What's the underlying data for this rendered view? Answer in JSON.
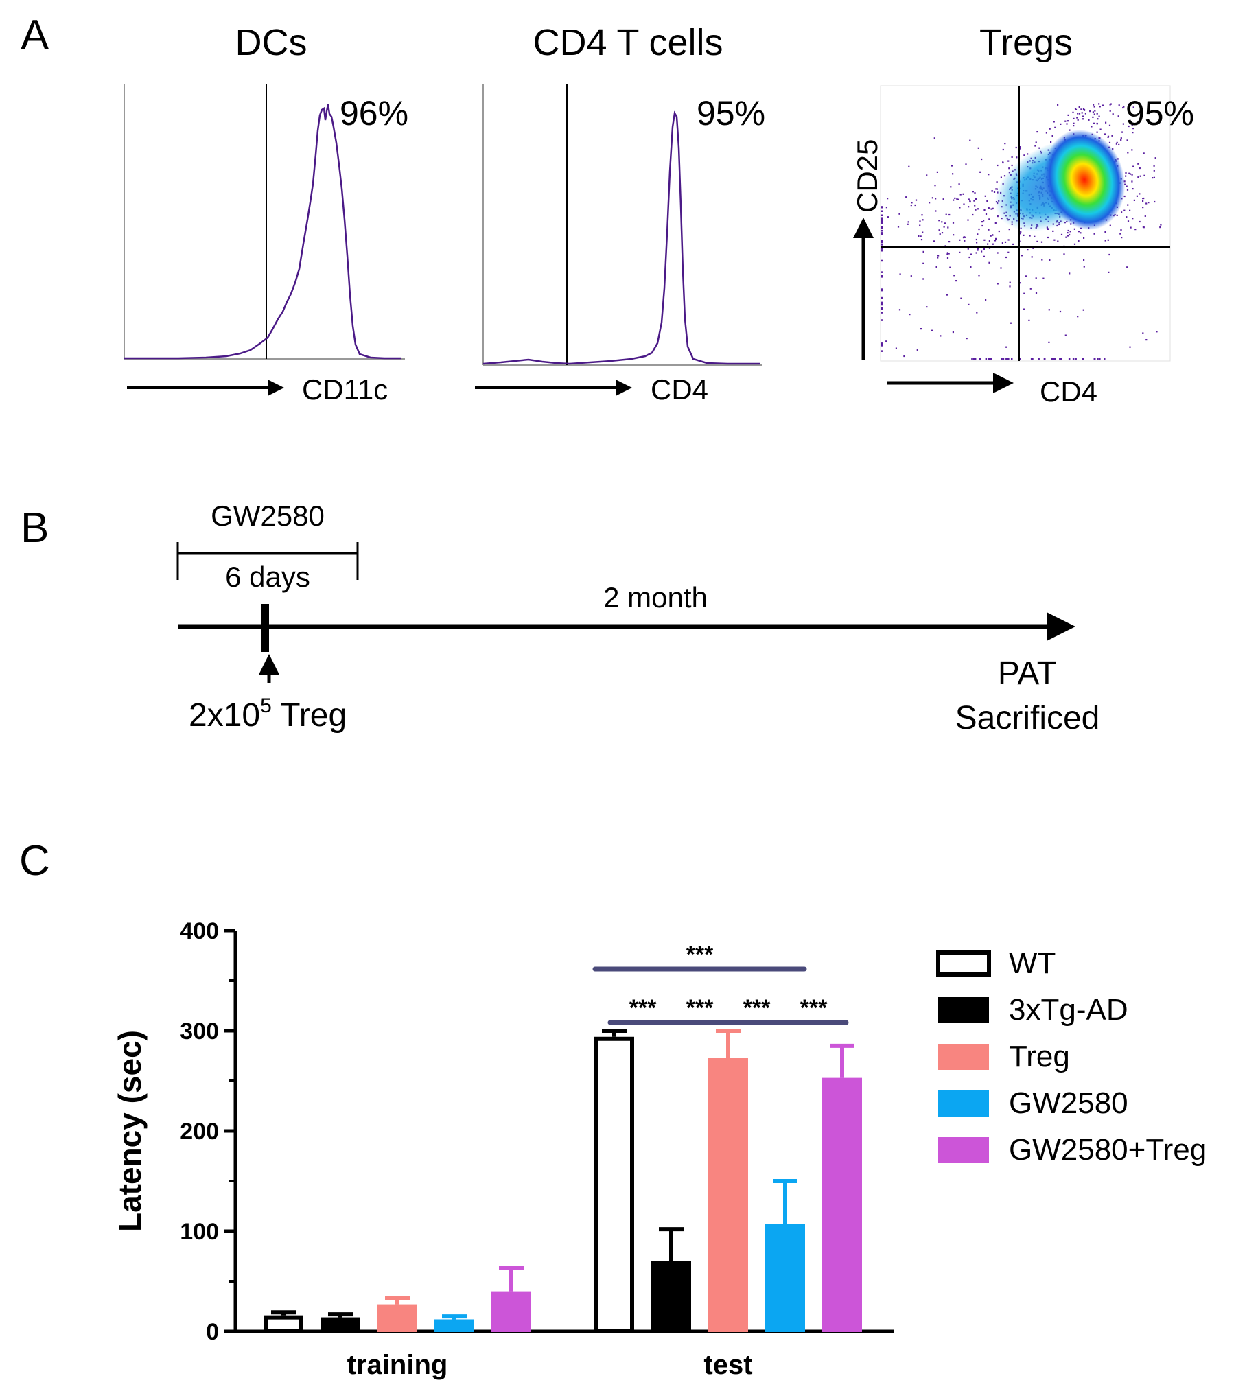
{
  "panels": {
    "a": {
      "letter": "A",
      "dcs": {
        "title": "DCs",
        "percent": "96%",
        "marker": "CD11c",
        "color": "#4b1a87"
      },
      "cd4": {
        "title": "CD4 T cells",
        "percent": "95%",
        "marker": "CD4",
        "color": "#4b1a87"
      },
      "tregs": {
        "title": "Tregs",
        "percent": "95%",
        "x_marker": "CD4",
        "y_marker": "CD25"
      }
    },
    "b": {
      "letter": "B",
      "drug": "GW2580",
      "drug_duration": "6 days",
      "interval": "2 month",
      "injection_prefix": "2x10",
      "injection_exp": "5",
      "injection_suffix": " Treg",
      "endpoint_1": "PAT",
      "endpoint_2": "Sacrificed"
    },
    "c": {
      "letter": "C"
    }
  },
  "chart_data": {
    "type": "bar",
    "ylabel": "Latency (sec)",
    "xlabel": "",
    "ylim": [
      0,
      400
    ],
    "yticks": [
      "0",
      "100",
      "200",
      "300",
      "400"
    ],
    "categories": [
      "training",
      "test"
    ],
    "series": [
      {
        "name": "WT",
        "color": "#ffffff",
        "stroke": "#000000",
        "values": [
          16,
          294
        ],
        "errors": [
          3,
          6
        ]
      },
      {
        "name": "3xTg-AD",
        "color": "#000000",
        "stroke": "#000000",
        "values": [
          14,
          70
        ],
        "errors": [
          3,
          32
        ]
      },
      {
        "name": "Treg",
        "color": "#f88580",
        "stroke": "#f88580",
        "values": [
          27,
          273
        ],
        "errors": [
          6,
          27
        ]
      },
      {
        "name": "GW2580",
        "color": "#0ba6f2",
        "stroke": "#0ba6f2",
        "values": [
          12,
          107
        ],
        "errors": [
          3,
          43
        ]
      },
      {
        "name": "GW2580+Treg",
        "color": "#cc55d8",
        "stroke": "#cc55d8",
        "values": [
          40,
          253
        ],
        "errors": [
          23,
          32
        ]
      }
    ],
    "significance": [
      {
        "label": "***",
        "from": "WT",
        "to": "GW2580",
        "level": "top"
      },
      {
        "label": "***",
        "from": "WT",
        "to": "3xTg-AD",
        "level": "low"
      },
      {
        "label": "***",
        "from": "3xTg-AD",
        "to": "Treg",
        "level": "low"
      },
      {
        "label": "***",
        "from": "Treg",
        "to": "GW2580",
        "level": "low"
      },
      {
        "label": "***",
        "from": "GW2580",
        "to": "GW2580+Treg",
        "level": "low"
      }
    ],
    "significance_color": "#4a4a7a"
  }
}
